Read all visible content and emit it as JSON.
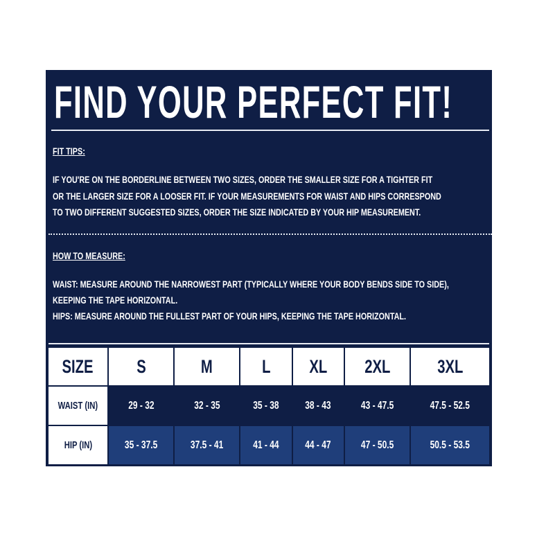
{
  "title": "FIND YOUR PERFECT FIT!",
  "fit_tips": {
    "heading": "FIT TIPS:",
    "lines": [
      "IF YOU'RE ON THE BORDERLINE BETWEEN TWO SIZES, ORDER THE SMALLER SIZE FOR A TIGHTER FIT",
      "OR THE LARGER SIZE FOR A LOOSER FIT. IF YOUR MEASUREMENTS FOR WAIST AND HIPS CORRESPOND",
      "TO TWO DIFFERENT SUGGESTED SIZES, ORDER THE SIZE INDICATED BY YOUR HIP MEASUREMENT."
    ]
  },
  "how_to_measure": {
    "heading": "HOW TO MEASURE:",
    "lines": [
      "WAIST: MEASURE AROUND THE NARROWEST PART (TYPICALLY WHERE YOUR BODY BENDS SIDE TO SIDE),",
      "KEEPING THE TAPE HORIZONTAL.",
      "HIPS: MEASURE AROUND THE FULLEST PART OF YOUR HIPS, KEEPING THE TAPE HORIZONTAL."
    ]
  },
  "table": {
    "header": [
      "SIZE",
      "S",
      "M",
      "L",
      "XL",
      "2XL",
      "3XL"
    ],
    "waist": [
      "WAIST (IN)",
      "29 - 32",
      "32 - 35",
      "35 - 38",
      "38 - 43",
      "43 - 47.5",
      "47.5 - 52.5"
    ],
    "hip": [
      "HIP (IN)",
      "35 - 37.5",
      "37.5 - 41",
      "41 - 44",
      "44 - 47",
      "47 - 50.5",
      "50.5 - 53.5"
    ]
  },
  "colors": {
    "navy": "#0f1e45",
    "hip_row": "#1f3e7a"
  }
}
